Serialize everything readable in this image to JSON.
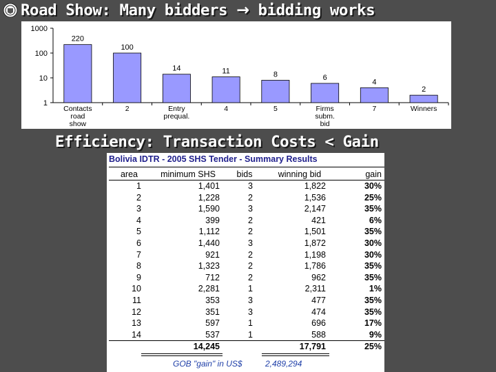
{
  "slide": {
    "title_part1": "Road Show: Many bidders",
    "title_arrow": "→",
    "title_part2": "bidding works",
    "subtitle": "Efficiency: Transaction Costs < Gain"
  },
  "chart_data": {
    "type": "bar",
    "scale": "log",
    "ylim": [
      1,
      1000
    ],
    "ytick_labels": [
      "1000",
      "100",
      "10",
      "1"
    ],
    "categories": [
      [
        "Contacts",
        "road",
        "show"
      ],
      [
        "2"
      ],
      [
        "Entry",
        "prequal."
      ],
      [
        "4"
      ],
      [
        "5"
      ],
      [
        "Firms",
        "subm.",
        "bid"
      ],
      [
        "7"
      ],
      [
        "Winners"
      ]
    ],
    "values": [
      220,
      100,
      14,
      11,
      8,
      6,
      4,
      2
    ],
    "data_labels": [
      "220",
      "100",
      "14",
      "11",
      "8",
      "6",
      "4",
      "2"
    ],
    "bar_color": "#9999ff",
    "grid": false
  },
  "table": {
    "title": "Bolivia IDTR - 2005 SHS Tender - Summary Results",
    "headers": [
      "area",
      "minimum SHS",
      "bids",
      "winning bid",
      "gain"
    ],
    "rows": [
      [
        "1",
        "1,401",
        "3",
        "1,822",
        "30%"
      ],
      [
        "2",
        "1,228",
        "2",
        "1,536",
        "25%"
      ],
      [
        "3",
        "1,590",
        "3",
        "2,147",
        "35%"
      ],
      [
        "4",
        "399",
        "2",
        "421",
        "6%"
      ],
      [
        "5",
        "1,112",
        "2",
        "1,501",
        "35%"
      ],
      [
        "6",
        "1,440",
        "3",
        "1,872",
        "30%"
      ],
      [
        "7",
        "921",
        "2",
        "1,198",
        "30%"
      ],
      [
        "8",
        "1,323",
        "2",
        "1,786",
        "35%"
      ],
      [
        "9",
        "712",
        "2",
        "962",
        "35%"
      ],
      [
        "10",
        "2,281",
        "1",
        "2,311",
        "1%"
      ],
      [
        "11",
        "353",
        "3",
        "477",
        "35%"
      ],
      [
        "12",
        "351",
        "3",
        "474",
        "35%"
      ],
      [
        "13",
        "597",
        "1",
        "696",
        "17%"
      ],
      [
        "14",
        "537",
        "1",
        "588",
        "9%"
      ]
    ],
    "totals": [
      "14,245",
      "17,791",
      "25%"
    ],
    "gob_label": "GOB \"gain\" in US$",
    "gob_value": "2,489,294"
  }
}
